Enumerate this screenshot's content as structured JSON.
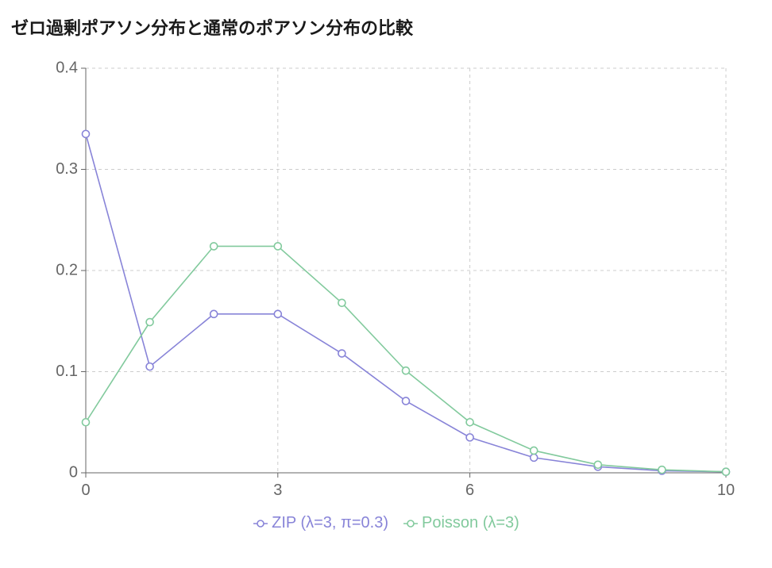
{
  "chart_data": {
    "type": "line",
    "title": "ゼロ過剰ポアソン分布と通常のポアソン分布の比較",
    "x": [
      0,
      1,
      2,
      3,
      4,
      5,
      6,
      7,
      8,
      9,
      10
    ],
    "xlim": [
      0,
      10
    ],
    "ylim": [
      0,
      0.4
    ],
    "x_ticks": [
      "0",
      "3",
      "6",
      "10"
    ],
    "x_tick_values": [
      0,
      3,
      6,
      10
    ],
    "y_ticks": [
      "0",
      "0.1",
      "0.2",
      "0.3",
      "0.4"
    ],
    "y_tick_values": [
      0,
      0.1,
      0.2,
      0.3,
      0.4
    ],
    "grid": true,
    "legend_position": "bottom",
    "series": [
      {
        "name": "ZIP (λ=3, π=0.3)",
        "color": "#8884d8",
        "values": [
          0.335,
          0.105,
          0.157,
          0.157,
          0.118,
          0.071,
          0.035,
          0.015,
          0.006,
          0.002,
          0.001
        ]
      },
      {
        "name": "Poisson (λ=3)",
        "color": "#82ca9d",
        "values": [
          0.05,
          0.149,
          0.224,
          0.224,
          0.168,
          0.101,
          0.05,
          0.022,
          0.008,
          0.003,
          0.001
        ]
      }
    ]
  }
}
